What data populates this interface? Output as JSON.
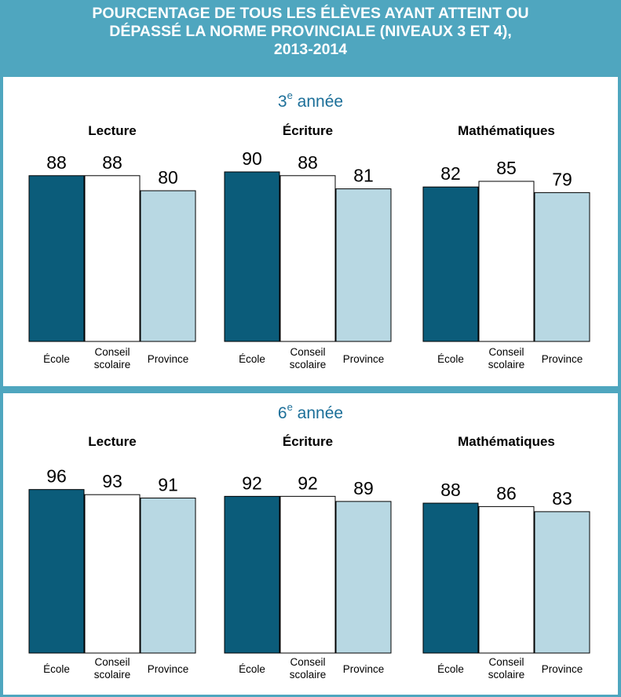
{
  "header": {
    "title_lines": [
      "POURCENTAGE DE TOUS LES ÉLÈVES AYANT ATTEINT OU",
      "DÉPASSÉ LA NORME PROVINCIALE (NIVEAUX 3 ET 4),",
      "2013-2014"
    ]
  },
  "colors": {
    "ecole": "#0b5c7a",
    "conseil": "#ffffff",
    "province": "#b8d8e3",
    "frame": "#4fa6bf",
    "grade_title": "#1c6f99"
  },
  "grades": [
    {
      "number": "3",
      "suffix": "e",
      "label": "année"
    },
    {
      "number": "6",
      "suffix": "e",
      "label": "année"
    }
  ],
  "chart_data": [
    {
      "type": "bar",
      "title": "Lecture",
      "grade": "3e année",
      "categories": [
        "École",
        "Conseil scolaire",
        "Province"
      ],
      "values": [
        88,
        88,
        80
      ],
      "ylim": [
        0,
        100
      ]
    },
    {
      "type": "bar",
      "title": "Écriture",
      "grade": "3e année",
      "categories": [
        "École",
        "Conseil scolaire",
        "Province"
      ],
      "values": [
        90,
        88,
        81
      ],
      "ylim": [
        0,
        100
      ]
    },
    {
      "type": "bar",
      "title": "Mathématiques",
      "grade": "3e année",
      "categories": [
        "École",
        "Conseil scolaire",
        "Province"
      ],
      "values": [
        82,
        85,
        79
      ],
      "ylim": [
        0,
        100
      ]
    },
    {
      "type": "bar",
      "title": "Lecture",
      "grade": "6e année",
      "categories": [
        "École",
        "Conseil scolaire",
        "Province"
      ],
      "values": [
        96,
        93,
        91
      ],
      "ylim": [
        0,
        100
      ]
    },
    {
      "type": "bar",
      "title": "Écriture",
      "grade": "6e année",
      "categories": [
        "École",
        "Conseil scolaire",
        "Province"
      ],
      "values": [
        92,
        92,
        89
      ],
      "ylim": [
        0,
        100
      ]
    },
    {
      "type": "bar",
      "title": "Mathématiques",
      "grade": "6e année",
      "categories": [
        "École",
        "Conseil scolaire",
        "Province"
      ],
      "values": [
        88,
        86,
        83
      ],
      "ylim": [
        0,
        100
      ]
    }
  ]
}
